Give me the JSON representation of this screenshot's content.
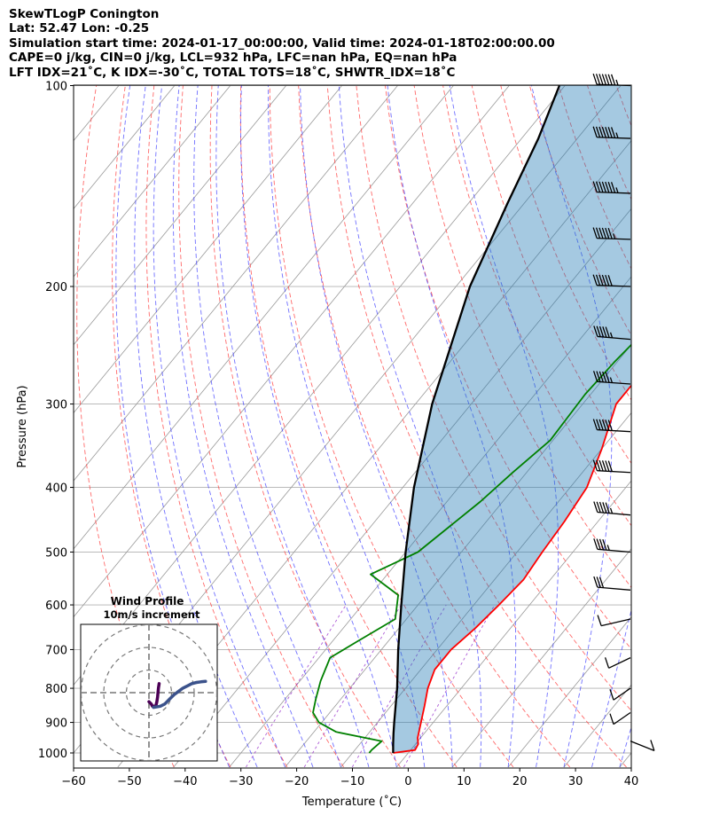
{
  "header": {
    "lines": [
      "SkewTLogP Conington",
      "Lat: 52.47   Lon: -0.25",
      "Simulation start time: 2024-01-17_00:00:00, Valid time: 2024-01-18T02:00:00.00",
      "CAPE=0 j/kg, CIN=0 j/kg, LCL=932 hPa, LFC=nan hPa, EQ=nan hPa",
      "LFT IDX=21˚C, K IDX=-30˚C, TOTAL TOTS=18˚C, SHWTR_IDX=18˚C"
    ]
  },
  "chart_data": [
    {
      "type": "line",
      "subtype": "skew-t-log-p",
      "xlabel": "Temperature (˚C)",
      "ylabel": "Pressure (hPa)",
      "xlim": [
        -60,
        40
      ],
      "ylim": [
        1050,
        100
      ],
      "y_scale": "log",
      "x_ticks": [
        -60,
        -50,
        -40,
        -30,
        -20,
        -10,
        0,
        10,
        20,
        30,
        40
      ],
      "x_tick_labels": [
        "−60",
        "−50",
        "−40",
        "−30",
        "−20",
        "−10",
        "0",
        "10",
        "20",
        "30",
        "40"
      ],
      "y_ticks": [
        1000,
        900,
        800,
        700,
        600,
        500,
        400,
        300,
        200,
        100
      ],
      "y_tick_labels": [
        "1000",
        "900",
        "800",
        "700",
        "600",
        "500",
        "400",
        "300",
        "200",
        "100"
      ],
      "grid": true,
      "skew_note": "temperature at a given pressure is the x-axis reading at that height",
      "series": [
        {
          "role": "temperature",
          "color": "#ff0000",
          "points": [
            [
              1000,
              -2.7
            ],
            [
              990,
              0.8
            ],
            [
              970,
              0.5
            ],
            [
              950,
              -0.5
            ],
            [
              900,
              -2.2
            ],
            [
              850,
              -4.0
            ],
            [
              800,
              -6.0
            ],
            [
              750,
              -7.5
            ],
            [
              700,
              -7.5
            ],
            [
              650,
              -6.3
            ],
            [
              600,
              -5.5
            ],
            [
              550,
              -4.8
            ],
            [
              500,
              -5.5
            ],
            [
              450,
              -6.0
            ],
            [
              400,
              -7.0
            ],
            [
              350,
              -10.0
            ],
            [
              300,
              -14.0
            ],
            [
              270,
              -14.0
            ],
            [
              240,
              -12.0
            ],
            [
              210,
              -10.0
            ],
            [
              190,
              -8.0
            ],
            [
              170,
              -3.0
            ],
            [
              150,
              0.0
            ],
            [
              120,
              3.0
            ],
            [
              100,
              6.0
            ]
          ]
        },
        {
          "role": "dewpoint",
          "color": "#008000",
          "points": [
            [
              1000,
              -7.0
            ],
            [
              990,
              -7.0
            ],
            [
              960,
              -6.5
            ],
            [
              930,
              -16.0
            ],
            [
              900,
              -20.5
            ],
            [
              870,
              -23.0
            ],
            [
              830,
              -24.5
            ],
            [
              780,
              -26.3
            ],
            [
              720,
              -28.0
            ],
            [
              680,
              -25.5
            ],
            [
              630,
              -22.0
            ],
            [
              580,
              -25.0
            ],
            [
              540,
              -33.0
            ],
            [
              500,
              -27.8
            ],
            [
              420,
              -24.0
            ],
            [
              380,
              -22.5
            ],
            [
              340,
              -20.5
            ],
            [
              290,
              -21.0
            ],
            [
              260,
              -20.5
            ],
            [
              230,
              -19.5
            ],
            [
              200,
              -17.5
            ],
            [
              180,
              -17.5
            ],
            [
              160,
              -16.7
            ],
            [
              150,
              -14.5
            ],
            [
              120,
              -8.0
            ],
            [
              100,
              -2.5
            ]
          ]
        },
        {
          "role": "parcel",
          "color": "#000000",
          "points": [
            [
              1000,
              -2.7
            ],
            [
              970,
              -4.0
            ],
            [
              935,
              -5.5
            ],
            [
              900,
              -7.0
            ],
            [
              800,
              -11.5
            ],
            [
              700,
              -17.0
            ],
            [
              600,
              -23.0
            ],
            [
              500,
              -30.0
            ],
            [
              400,
              -38.0
            ],
            [
              300,
              -47.0
            ],
            [
              200,
              -57.5
            ],
            [
              150,
              -63.0
            ],
            [
              120,
              -67.0
            ],
            [
              100,
              -71.0
            ]
          ]
        }
      ],
      "fills": [
        {
          "between": [
            "parcel",
            "temperature"
          ],
          "color": "#1f77b4",
          "opacity": 0.4
        }
      ],
      "background_lines": {
        "isotherm_color": "#999999",
        "dry_adiabat_color": "#ff4444",
        "moist_adiabat_color": "#3333ff",
        "mixing_ratio_color": "#9933cc"
      },
      "wind_barbs": [
        {
          "p": 100,
          "speed_kt": 75,
          "dir": 265
        },
        {
          "p": 120,
          "speed_kt": 75,
          "dir": 265
        },
        {
          "p": 145,
          "speed_kt": 75,
          "dir": 265
        },
        {
          "p": 170,
          "speed_kt": 65,
          "dir": 265
        },
        {
          "p": 200,
          "speed_kt": 60,
          "dir": 265
        },
        {
          "p": 240,
          "speed_kt": 55,
          "dir": 258
        },
        {
          "p": 280,
          "speed_kt": 55,
          "dir": 260
        },
        {
          "p": 330,
          "speed_kt": 60,
          "dir": 262
        },
        {
          "p": 380,
          "speed_kt": 60,
          "dir": 262
        },
        {
          "p": 440,
          "speed_kt": 55,
          "dir": 258
        },
        {
          "p": 500,
          "speed_kt": 45,
          "dir": 258
        },
        {
          "p": 570,
          "speed_kt": 30,
          "dir": 258
        },
        {
          "p": 630,
          "speed_kt": 10,
          "dir": 300
        },
        {
          "p": 720,
          "speed_kt": 10,
          "dir": 320
        },
        {
          "p": 800,
          "speed_kt": 10,
          "dir": 330
        },
        {
          "p": 870,
          "speed_kt": 10,
          "dir": 330
        },
        {
          "p": 960,
          "speed_kt": 10,
          "dir": 45
        }
      ]
    },
    {
      "type": "line",
      "subtype": "hodograph",
      "title": "Wind Profile",
      "subtitle": "10m/s increment",
      "ring_step_ms": 10,
      "rings": 3,
      "series": [
        {
          "name": "low",
          "color": "#4b0055",
          "points": [
            [
              0,
              -4
            ],
            [
              1,
              -5
            ],
            [
              1.5,
              -6
            ],
            [
              2.2,
              -6
            ],
            [
              3,
              -6
            ],
            [
              3.5,
              -4
            ],
            [
              3.8,
              -2
            ],
            [
              4,
              0
            ],
            [
              4.2,
              2
            ],
            [
              4.5,
              4
            ]
          ]
        },
        {
          "name": "high",
          "color": "#3b528b",
          "points": [
            [
              2,
              -6.5
            ],
            [
              5,
              -6
            ],
            [
              7,
              -5
            ],
            [
              9,
              -3
            ],
            [
              11,
              -1
            ],
            [
              13,
              0.5
            ],
            [
              15,
              2
            ],
            [
              17,
              3
            ],
            [
              19,
              4
            ],
            [
              21,
              4.5
            ],
            [
              23,
              4.8
            ],
            [
              25,
              5
            ]
          ]
        }
      ]
    }
  ]
}
